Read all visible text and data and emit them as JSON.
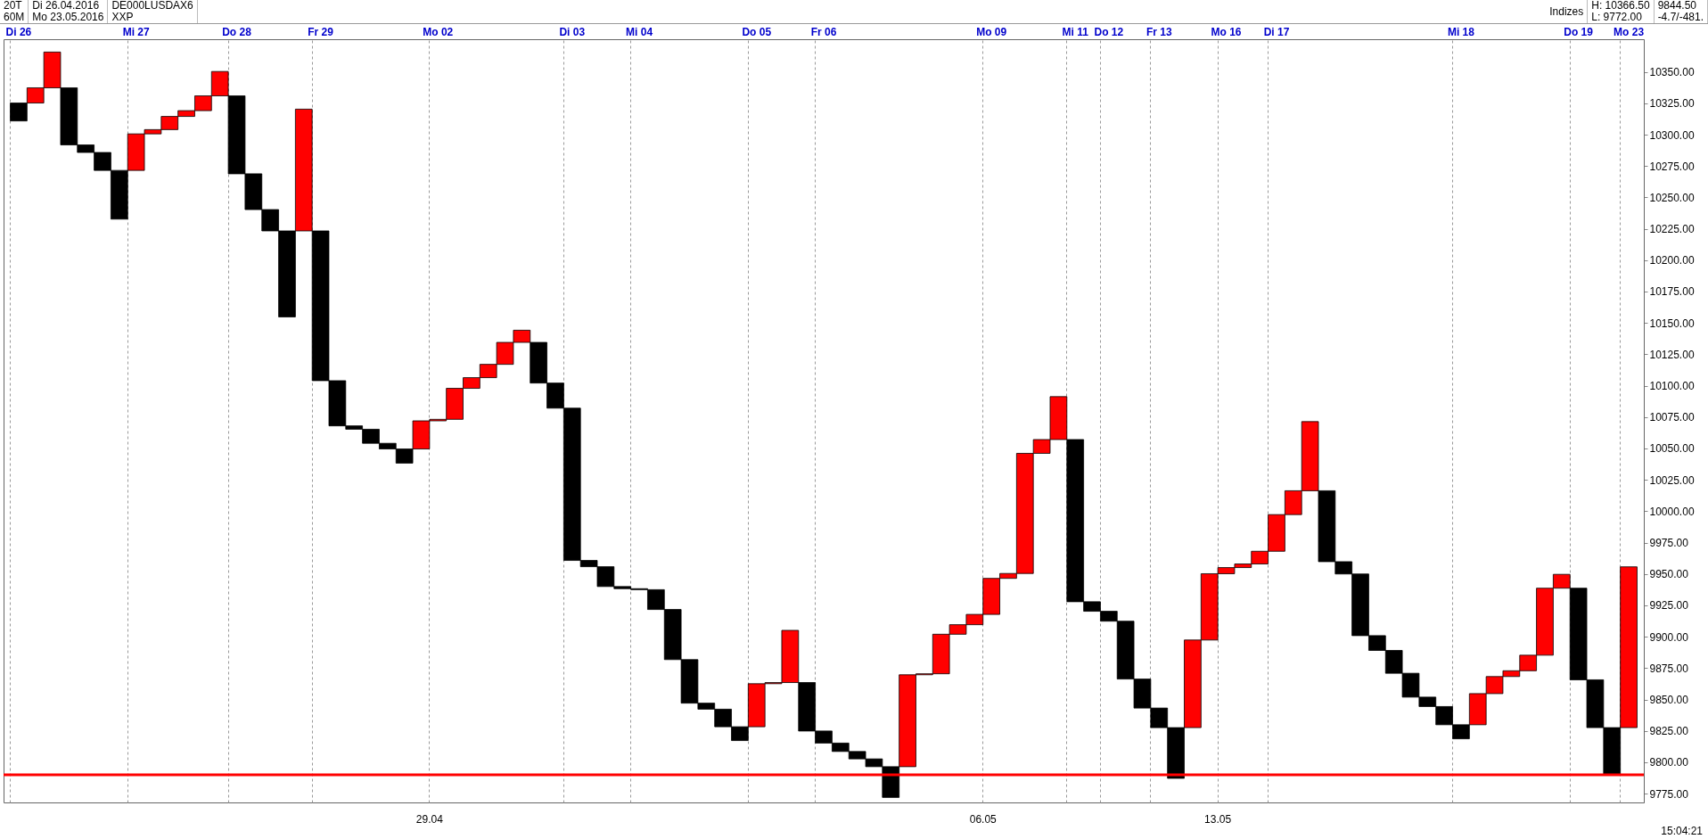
{
  "chart_data": {
    "type": "bar",
    "categories": [
      "Di 26",
      null,
      null,
      null,
      null,
      null,
      null,
      "Mi 27",
      null,
      null,
      null,
      null,
      null,
      "Do 28",
      null,
      null,
      null,
      null,
      "Fr 29",
      null,
      null,
      null,
      null,
      null,
      null,
      "Mo 02",
      null,
      null,
      null,
      null,
      null,
      null,
      null,
      "Di 03",
      null,
      null,
      null,
      "Mi 04",
      null,
      null,
      null,
      null,
      null,
      null,
      "Do 05",
      null,
      null,
      null,
      "Fr 06",
      null,
      null,
      null,
      null,
      null,
      null,
      null,
      null,
      null,
      "Mo 09",
      null,
      null,
      null,
      null,
      "Mi 11",
      null,
      "Do 12",
      null,
      null,
      "Fr 13",
      null,
      null,
      null,
      "Mo 16",
      null,
      null,
      "Di 17",
      null,
      null,
      null,
      null,
      null,
      null,
      null,
      null,
      null,
      null,
      "Mi 18",
      null,
      null,
      null,
      null,
      null,
      null,
      "Do 19",
      null,
      null,
      "Mo 23"
    ],
    "base": [
      10325.2,
      10325.2,
      10337.3,
      10337.3,
      10291.8,
      10285.8,
      10271.5,
      10271.5,
      10300.6,
      10304.0,
      10314.5,
      10319.1,
      10330.9,
      10330.9,
      10268.8,
      10240.3,
      10223.3,
      10223.3,
      10223.3,
      10104.0,
      10068.0,
      10065.3,
      10054.1,
      10049.6,
      10049.6,
      10072.0,
      10073.2,
      10097.9,
      10106.4,
      10117.0,
      10134.5,
      10134.5,
      10102.1,
      10082.1,
      9960.8,
      9955.8,
      9940.0,
      9938.3,
      9937.5,
      9921.7,
      9881.8,
      9847.1,
      9842.3,
      9828.3,
      9828.3,
      9862.6,
      9863.5,
      9863.5,
      9824.9,
      9815.3,
      9808.6,
      9802.7,
      9796.5,
      9796.5,
      9869.7,
      9870.5,
      9902.0,
      9909.6,
      9917.8,
      9946.5,
      9950.4,
      10046.1,
      10057.1,
      10057.1,
      9927.9,
      9920.3,
      9912.4,
      9866.3,
      9843.2,
      9827.6,
      9827.6,
      9897.4,
      9950.2,
      9955.1,
      9958.0,
      9968.1,
      9997.3,
      10016.3,
      10016.3,
      9959.8,
      9950.0,
      9900.9,
      9889.1,
      9870.9,
      9851.9,
      9844.4,
      9829.9,
      9829.9,
      9854.7,
      9868.3,
      9872.9,
      9885.3,
      9938.7,
      9938.7,
      9865.7,
      9827.6,
      9827.6
    ],
    "values": [
      -14.3,
      12.1,
      28.5,
      -45.5,
      -6.0,
      -14.3,
      -38.8,
      29.1,
      3.4,
      10.5,
      4.6,
      11.8,
      19.4,
      -62.1,
      -28.5,
      -17.0,
      -68.5,
      97.0,
      -119.3,
      -36.0,
      -2.7,
      -11.2,
      -4.5,
      -11.3,
      22.4,
      1.2,
      24.7,
      8.5,
      10.6,
      17.5,
      9.7,
      -32.4,
      -20.0,
      -121.3,
      -5.0,
      -15.8,
      -1.7,
      -0.8,
      -15.8,
      -39.9,
      -34.7,
      -4.8,
      -14.0,
      -11.0,
      34.3,
      0.9,
      41.6,
      -38.6,
      -9.6,
      -6.7,
      -5.9,
      -6.2,
      -24.5,
      73.2,
      0.8,
      31.5,
      7.6,
      8.2,
      28.7,
      3.9,
      95.7,
      11.0,
      34.2,
      -129.2,
      -7.6,
      -7.9,
      -46.1,
      -23.1,
      -15.6,
      -40.4,
      69.8,
      52.8,
      4.9,
      2.9,
      10.1,
      29.2,
      19.0,
      55.1,
      -56.5,
      -9.8,
      -49.1,
      -11.8,
      -18.2,
      -19.0,
      -7.5,
      -14.5,
      -11.2,
      24.8,
      13.6,
      4.6,
      12.4,
      53.4,
      11.0,
      -73.0,
      -38.1,
      -37.5,
      128.1
    ],
    "colors": [
      "#000000",
      "#ff0000",
      "#ff0000",
      "#000000",
      "#000000",
      "#000000",
      "#000000",
      "#ff0000",
      "#ff0000",
      "#ff0000",
      "#ff0000",
      "#ff0000",
      "#ff0000",
      "#000000",
      "#000000",
      "#000000",
      "#000000",
      "#ff0000",
      "#000000",
      "#000000",
      "#000000",
      "#000000",
      "#000000",
      "#000000",
      "#ff0000",
      "#ff0000",
      "#ff0000",
      "#ff0000",
      "#ff0000",
      "#ff0000",
      "#ff0000",
      "#000000",
      "#000000",
      "#000000",
      "#000000",
      "#000000",
      "#000000",
      "#000000",
      "#000000",
      "#000000",
      "#000000",
      "#000000",
      "#000000",
      "#000000",
      "#ff0000",
      "#ff0000",
      "#ff0000",
      "#000000",
      "#000000",
      "#000000",
      "#000000",
      "#000000",
      "#000000",
      "#ff0000",
      "#ff0000",
      "#ff0000",
      "#ff0000",
      "#ff0000",
      "#ff0000",
      "#ff0000",
      "#ff0000",
      "#ff0000",
      "#ff0000",
      "#000000",
      "#000000",
      "#000000",
      "#000000",
      "#000000",
      "#000000",
      "#000000",
      "#ff0000",
      "#ff0000",
      "#ff0000",
      "#ff0000",
      "#ff0000",
      "#ff0000",
      "#ff0000",
      "#ff0000",
      "#000000",
      "#000000",
      "#000000",
      "#000000",
      "#000000",
      "#000000",
      "#000000",
      "#000000",
      "#000000",
      "#ff0000",
      "#ff0000",
      "#ff0000",
      "#ff0000",
      "#ff0000",
      "#ff0000",
      "#000000",
      "#000000",
      "#000000",
      "#ff0000"
    ],
    "ylim": [
      9768,
      10376
    ],
    "yticks": [
      {
        "value": 9775,
        "label": "9775.00"
      },
      {
        "value": 9800,
        "label": "9800.00"
      },
      {
        "value": 9825,
        "label": "9825.00"
      },
      {
        "value": 9850,
        "label": "9850.00"
      },
      {
        "value": 9875,
        "label": "9875.00"
      },
      {
        "value": 9900,
        "label": "9900.00"
      },
      {
        "value": 9925,
        "label": "9925.00"
      },
      {
        "value": 9950,
        "label": "9950.00"
      },
      {
        "value": 9975,
        "label": "9975.00"
      },
      {
        "value": 10000,
        "label": "10000.00"
      },
      {
        "value": 10025,
        "label": "10025.00"
      },
      {
        "value": 10050,
        "label": "10050.00"
      },
      {
        "value": 10075,
        "label": "10075.00"
      },
      {
        "value": 10100,
        "label": "10100.00"
      },
      {
        "value": 10125,
        "label": "10125.00"
      },
      {
        "value": 10150,
        "label": "10150.00"
      },
      {
        "value": 10175,
        "label": "10175.00"
      },
      {
        "value": 10200,
        "label": "10200.00"
      },
      {
        "value": 10225,
        "label": "10225.00"
      },
      {
        "value": 10250,
        "label": "10250.00"
      },
      {
        "value": 10275,
        "label": "10275.00"
      },
      {
        "value": 10300,
        "label": "10300.00"
      },
      {
        "value": 10325,
        "label": "10325.00"
      },
      {
        "value": 10350,
        "label": "10350.00"
      }
    ],
    "grid": "x",
    "ref_lines": [
      {
        "axis": "y",
        "value": 9790,
        "color": "#ff0000"
      }
    ],
    "annotations": [
      "20T",
      "60M",
      "Di 26.04.2016",
      "Mo 23.05.2016",
      "DE000LUSDAX6",
      "XXP",
      "Indizes",
      "H: 10366.50",
      "L: 9772.00",
      "9844.50",
      "-4.7/-481.",
      "29.04",
      "06.05",
      "13.05",
      "15:04:21"
    ]
  }
}
